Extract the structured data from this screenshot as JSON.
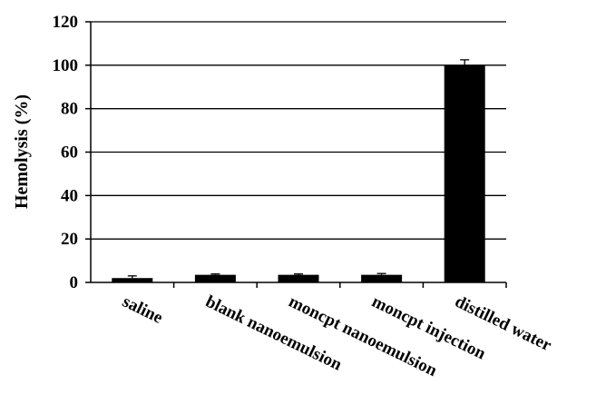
{
  "chart_data": {
    "type": "bar",
    "categories": [
      "saline",
      "blank nanoemulsion",
      "moncpt nanoemulsion",
      "moncpt injection",
      "distilled water"
    ],
    "values": [
      2.0,
      3.5,
      3.5,
      3.5,
      100.0
    ],
    "errors": [
      1.0,
      0.4,
      0.4,
      0.6,
      2.5
    ],
    "ylabel": "Hemolysis (%)",
    "xlabel": "",
    "ylim": [
      0,
      120
    ],
    "yticks": [
      0,
      20,
      40,
      60,
      80,
      100,
      120
    ],
    "ytick_labels": [
      "0",
      "20",
      "40",
      "60",
      "80",
      "100",
      "120"
    ],
    "grid": true,
    "bar_color": "#000000"
  }
}
